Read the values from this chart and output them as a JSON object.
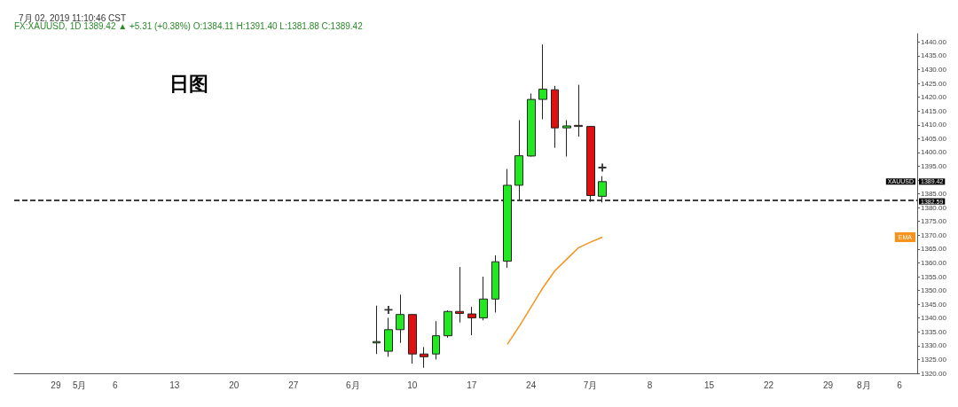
{
  "chart_data": {
    "type": "candlestick",
    "title": "日图",
    "subtitle": "7月 02, 2019 11:10:46 CST",
    "annotations": [
      "FX:XAUUSD, 1D 1389.42 ▲ +5.31 (+0.38%) O:1384.11 H:1391.40 L:1381.88 C:1389.42",
      "XAUUSD",
      "1389.42"
    ],
    "categories": [
      null,
      null,
      null,
      "29",
      null,
      "5月",
      null,
      null,
      "6",
      null,
      null,
      null,
      null,
      "13",
      null,
      null,
      null,
      null,
      "20",
      null,
      null,
      null,
      null,
      "27",
      null,
      null,
      null,
      null,
      "6月",
      null,
      null,
      null,
      null,
      "10",
      null,
      null,
      null,
      null,
      "17",
      null,
      null,
      null,
      null,
      "24",
      null,
      null,
      null,
      null,
      "7月",
      null,
      null,
      null,
      null,
      "8",
      null,
      null,
      null,
      null,
      "15",
      null,
      null,
      null,
      null,
      "22",
      null,
      null,
      null,
      null,
      "29",
      null,
      null,
      "8月",
      null,
      null,
      "6",
      null
    ],
    "ohlc": [
      null,
      null,
      null,
      null,
      null,
      null,
      null,
      null,
      null,
      null,
      null,
      null,
      null,
      null,
      null,
      null,
      null,
      null,
      null,
      null,
      null,
      null,
      null,
      null,
      null,
      null,
      null,
      null,
      null,
      null,
      [
        1331,
        1344.5,
        1327,
        1331.5
      ],
      [
        1328,
        1340.1,
        1326,
        1335.8
      ],
      [
        1335.8,
        1348.5,
        1331,
        1341.3
      ],
      [
        1341.3,
        1341.5,
        1323.5,
        1327
      ],
      [
        1327,
        1329.5,
        1322,
        1326
      ],
      [
        1327,
        1338.9,
        1325,
        1333.6
      ],
      [
        1333.6,
        1342.8,
        1332.9,
        1342.4
      ],
      [
        1342.4,
        1358.5,
        1338.4,
        1341.7
      ],
      [
        1341.5,
        1344.1,
        1333.8,
        1340.1
      ],
      [
        1340.1,
        1355,
        1339.2,
        1346.9
      ],
      [
        1346.9,
        1362.7,
        1342,
        1360.4
      ],
      [
        1360.6,
        1394,
        1358.2,
        1388.1
      ],
      [
        1388.1,
        1411.7,
        1382.8,
        1398.8
      ],
      [
        1398.7,
        1421.3,
        1398.5,
        1419.2
      ],
      [
        1419.2,
        1439.1,
        1412,
        1422.9
      ],
      [
        1422.7,
        1424.1,
        1401.7,
        1408.9
      ],
      [
        1408.9,
        1411.7,
        1398.5,
        1409.6
      ],
      [
        1409.8,
        1424.5,
        1405.7,
        1409.4
      ],
      [
        1409.4,
        1409.6,
        1382.1,
        1384.4
      ],
      [
        1384.11,
        1391.4,
        1381.88,
        1389.42
      ],
      null,
      null,
      null,
      null,
      null,
      null,
      null,
      null,
      null,
      null,
      null,
      null,
      null,
      null,
      null,
      null,
      null,
      null,
      null,
      null,
      null,
      null,
      null,
      null,
      null,
      null
    ],
    "colors": [
      null,
      null,
      null,
      null,
      null,
      null,
      null,
      null,
      null,
      null,
      null,
      null,
      null,
      null,
      null,
      null,
      null,
      null,
      null,
      null,
      null,
      null,
      null,
      null,
      null,
      null,
      null,
      null,
      null,
      null,
      "#22e822",
      "#22e822",
      "#22e822",
      "#e01010",
      "#e01010",
      "#22e822",
      "#22e822",
      "#e01010",
      "#e01010",
      "#22e822",
      "#22e822",
      "#22e822",
      "#22e822",
      "#22e822",
      "#22e822",
      "#e01010",
      "#22e822",
      "#e01010",
      "#e01010",
      "#22e822",
      null,
      null,
      null,
      null,
      null,
      null,
      null,
      null,
      null,
      null,
      null,
      null,
      null,
      null,
      null,
      null,
      null,
      null,
      null,
      null,
      null,
      null,
      null,
      null,
      null,
      null
    ],
    "series": [
      {
        "name": "EMA",
        "type": "line",
        "color": "#f7931a",
        "values": [
          null,
          null,
          null,
          null,
          null,
          null,
          null,
          null,
          null,
          null,
          null,
          null,
          null,
          null,
          null,
          null,
          null,
          null,
          null,
          null,
          null,
          null,
          null,
          null,
          null,
          null,
          null,
          null,
          null,
          null,
          null,
          null,
          null,
          null,
          null,
          null,
          null,
          null,
          null,
          null,
          null,
          1330.5,
          1337,
          1344,
          1351,
          1357.1,
          1361.3,
          1365.5,
          1367.5,
          1369.3,
          null,
          null,
          null,
          null,
          null,
          null,
          null,
          null,
          null,
          null,
          null,
          null,
          null,
          null,
          null,
          null,
          null,
          null,
          null,
          null,
          null,
          null,
          null,
          null,
          null,
          null
        ]
      },
      {
        "type": "scatter",
        "marker": "cross",
        "color": "#000000",
        "values": [
          null,
          null,
          null,
          null,
          null,
          null,
          null,
          null,
          null,
          null,
          null,
          null,
          null,
          null,
          null,
          null,
          null,
          null,
          null,
          null,
          null,
          null,
          null,
          null,
          null,
          null,
          null,
          null,
          null,
          null,
          null,
          1343,
          null,
          null,
          null,
          null,
          null,
          null,
          null,
          null,
          null,
          null,
          null,
          null,
          null,
          null,
          null,
          null,
          null,
          1394.5,
          null,
          null,
          null,
          null,
          null,
          null,
          null,
          null,
          null,
          null,
          null,
          null,
          null,
          null,
          null,
          null,
          null,
          null,
          null,
          null,
          null,
          null,
          null,
          null,
          null,
          null
        ]
      }
    ],
    "ylim": [
      1320,
      1443
    ],
    "yticks": [
      {
        "value": 1320,
        "label": "1320.00"
      },
      {
        "value": 1325,
        "label": "1325.00"
      },
      {
        "value": 1330,
        "label": "1330.00"
      },
      {
        "value": 1335,
        "label": "1335.00"
      },
      {
        "value": 1340,
        "label": "1340.00"
      },
      {
        "value": 1345,
        "label": "1345.00"
      },
      {
        "value": 1350,
        "label": "1350.00"
      },
      {
        "value": 1355,
        "label": "1355.00"
      },
      {
        "value": 1360,
        "label": "1360.00"
      },
      {
        "value": 1365,
        "label": "1365.00"
      },
      {
        "value": 1370,
        "label": "1370.00"
      },
      {
        "value": 1375,
        "label": "1375.00"
      },
      {
        "value": 1380,
        "label": "1380.00"
      },
      {
        "value": 1385,
        "label": "1385.00"
      },
      {
        "value": 1390,
        "label": null
      },
      {
        "value": 1395,
        "label": "1395.00"
      },
      {
        "value": 1400,
        "label": "1400.00"
      },
      {
        "value": 1405,
        "label": "1405.00"
      },
      {
        "value": 1410,
        "label": "1410.00"
      },
      {
        "value": 1415,
        "label": "1415.00"
      },
      {
        "value": 1420,
        "label": "1420.00"
      },
      {
        "value": 1425,
        "label": "1425.00"
      },
      {
        "value": 1430,
        "label": "1430.00"
      },
      {
        "value": 1435,
        "label": "1435.00"
      },
      {
        "value": 1440,
        "label": "1440.00"
      }
    ],
    "ref_lines": [
      {
        "axis": "y",
        "value": 1382.59,
        "label": "1382.59",
        "color": "#000000",
        "line_style": "dashed"
      }
    ],
    "grid": false,
    "legend": false
  }
}
